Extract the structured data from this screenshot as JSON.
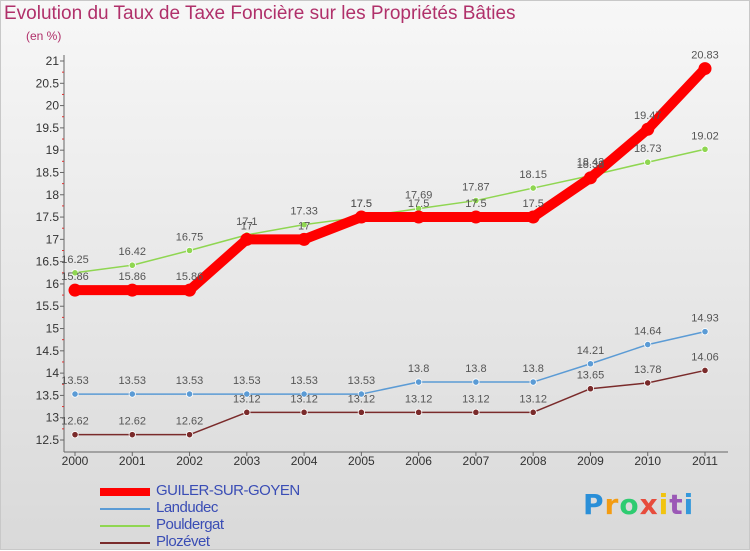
{
  "chart_data": {
    "type": "line",
    "title": "Evolution du Taux de Taxe Foncière sur les Propriétés Bâties",
    "subtitle": "(en %)",
    "x": [
      "2000",
      "2001",
      "2002",
      "2003",
      "2004",
      "2005",
      "2006",
      "2007",
      "2008",
      "2009",
      "2010",
      "2011"
    ],
    "ylim": [
      12.5,
      21
    ],
    "yticks": [
      "12.5",
      "13",
      "13.5",
      "14",
      "14.5",
      "15",
      "15.5",
      "16",
      "16.5",
      "17",
      "17.5",
      "18",
      "18.5",
      "19",
      "19.5",
      "20",
      "20.5",
      "21"
    ],
    "grid": false,
    "legend": "bottom-left",
    "series": [
      {
        "name": "GUILER-SUR-GOYEN",
        "color": "#ff0000",
        "values": [
          15.86,
          15.86,
          15.86,
          17,
          17,
          17.5,
          17.5,
          17.5,
          17.5,
          18.38,
          19.47,
          20.83
        ],
        "labels": [
          "15.86",
          "15.86",
          "15.86",
          "17",
          "17",
          "17.5",
          "17.5",
          "17.5",
          "17.5",
          "18.38",
          "19.47",
          "20.83"
        ]
      },
      {
        "name": "Landudec",
        "color": "#5b9bd5",
        "values": [
          13.53,
          13.53,
          13.53,
          13.53,
          13.53,
          13.53,
          13.8,
          13.8,
          13.8,
          14.21,
          14.64,
          14.93
        ],
        "labels": [
          "13.53",
          "13.53",
          "13.53",
          "13.53",
          "13.53",
          "13.53",
          "13.8",
          "13.8",
          "13.8",
          "14.21",
          "14.64",
          "14.93"
        ]
      },
      {
        "name": "Pouldergat",
        "color": "#8fd651",
        "values": [
          16.25,
          16.42,
          16.75,
          17.1,
          17.33,
          17.5,
          17.69,
          17.87,
          18.15,
          18.43,
          18.73,
          19.02
        ],
        "labels": [
          "16.25",
          "16.42",
          "16.75",
          "17.1",
          "17.33",
          "17.5",
          "17.69",
          "17.87",
          "18.15",
          "18.43",
          "18.73",
          "19.02"
        ]
      },
      {
        "name": "Plozévet",
        "color": "#7a2b2b",
        "values": [
          12.62,
          12.62,
          12.62,
          13.12,
          13.12,
          13.12,
          13.12,
          13.12,
          13.12,
          13.65,
          13.78,
          14.06
        ],
        "labels": [
          "12.62",
          "12.62",
          "12.62",
          "13.12",
          "13.12",
          "13.12",
          "13.12",
          "13.12",
          "13.12",
          "13.65",
          "13.78",
          "14.06"
        ]
      }
    ]
  },
  "logo": {
    "text": [
      "P",
      "r",
      "o",
      "x",
      "i",
      "t",
      "i"
    ],
    "colors": [
      "#2a8fd8",
      "#f39c12",
      "#2ecc71",
      "#e74c3c",
      "#f1c40f",
      "#9b59b6",
      "#3498db"
    ]
  }
}
